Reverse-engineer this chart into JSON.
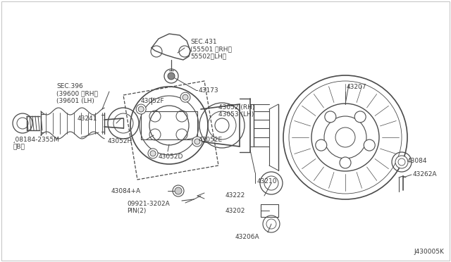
{
  "bg_color": "#ffffff",
  "line_color": "#4a4a4a",
  "text_color": "#3a3a3a",
  "fs": 7.0,
  "fs_small": 6.5,
  "diagram_code": "J430005K",
  "parts": {
    "SEC396": "SEC.396\n(39600 〈RH〉\n(39601 (LH)",
    "SEC431": "SEC.431\n(55501 〈RH〉\n55502〈LH〉",
    "43173": "43173",
    "43052F": "43052F",
    "43052RH": "43052 (RH)\n43053 (LH)",
    "43241": "43241",
    "08184": "¸08184-2355M\n〈B〉",
    "43052H": "43052H",
    "43052E": "43052E",
    "43052D": "43052D",
    "43084A": "43084+A",
    "09921": "09921-3202A\nPIN(2)",
    "43210": "43210",
    "43222": "43222",
    "43202": "43202",
    "43206A": "43206A",
    "43207": "43207",
    "43084": "43084",
    "43262A": "43262A"
  }
}
